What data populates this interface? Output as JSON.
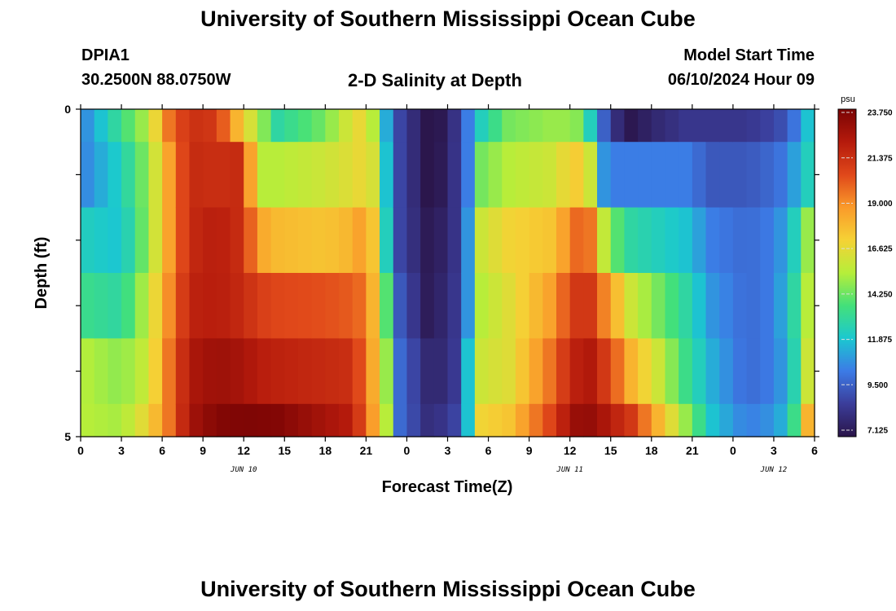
{
  "header": {
    "title": "University of Southern Mississippi Ocean Cube",
    "station": "DPIA1",
    "coords": "30.2500N  88.0750W",
    "subtitle": "2-D Salinity at Depth",
    "model_label": "Model Start Time",
    "model_time": "06/10/2024 Hour 09",
    "footer_title": "University of Southern Mississippi Ocean Cube"
  },
  "colors": {
    "scale": [
      "#2a1448",
      "#3b3d9a",
      "#3c7be6",
      "#1bc8d0",
      "#43e07a",
      "#b6ee3a",
      "#f5d235",
      "#fa9a2a",
      "#e0481a",
      "#b51a0c",
      "#7a0404"
    ]
  },
  "chart_data": {
    "type": "heatmap",
    "title": "2-D Salinity at Depth",
    "xlabel": "Forecast Time(Z)",
    "ylabel": "Depth (ft)",
    "x_tick_labels": [
      "0",
      "3",
      "6",
      "9",
      "12",
      "15",
      "18",
      "21",
      "0",
      "3",
      "6",
      "9",
      "12",
      "15",
      "18",
      "21",
      "0",
      "3",
      "6"
    ],
    "x_range_hours": [
      0,
      54
    ],
    "date_labels": [
      {
        "text": "JUN 10",
        "hour": 12
      },
      {
        "text": "JUN 11",
        "hour": 36
      },
      {
        "text": "JUN 12",
        "hour": 51
      }
    ],
    "y_tick_labels": [
      "0",
      "5"
    ],
    "y_range": [
      0,
      5
    ],
    "colorbar": {
      "unit": "psu",
      "min": 7.125,
      "max": 23.75,
      "labels": [
        "23.750",
        "21.375",
        "19.000",
        "16.625",
        "14.250",
        "11.875",
        "9.500",
        "7.125"
      ]
    },
    "depths_ft": [
      0.25,
      1.25,
      2.25,
      3.25,
      4.25,
      4.75
    ],
    "keypoints": [
      [
        0,
        10.5,
        10.5,
        12.5,
        13.5,
        15.5,
        15.5
      ],
      [
        3,
        13.5,
        12.5,
        12.0,
        13.0,
        14.8,
        15.2
      ],
      [
        5,
        15.5,
        15.0,
        15.0,
        15.8,
        16.0,
        17.0
      ],
      [
        6.5,
        19.5,
        18.5,
        18.5,
        19.0,
        19.5,
        19.5
      ],
      [
        8,
        21.3,
        21.5,
        21.5,
        21.8,
        22.3,
        22.5
      ],
      [
        10,
        21.0,
        21.3,
        22.0,
        22.0,
        22.8,
        23.5
      ],
      [
        12,
        17.0,
        21.5,
        21.3,
        21.5,
        22.5,
        23.6
      ],
      [
        13,
        15.5,
        15.5,
        18.5,
        20.8,
        22.0,
        23.6
      ],
      [
        14.5,
        13.0,
        15.5,
        17.8,
        20.5,
        21.8,
        23.5
      ],
      [
        18,
        14.5,
        16.0,
        17.5,
        20.3,
        21.5,
        22.5
      ],
      [
        20,
        16.5,
        16.5,
        18.0,
        20.0,
        21.3,
        22.0
      ],
      [
        21,
        17.0,
        17.0,
        19.0,
        19.5,
        19.5,
        19.8
      ],
      [
        22,
        14.0,
        15.5,
        16.0,
        16.5,
        17.0,
        17.5
      ],
      [
        22.5,
        11.5,
        12.0,
        12.5,
        14.0,
        15.0,
        15.5
      ],
      [
        23.5,
        9.0,
        9.0,
        9.0,
        9.5,
        10.0,
        10.0
      ],
      [
        25.5,
        7.2,
        7.2,
        7.4,
        7.5,
        8.0,
        8.2
      ],
      [
        27,
        7.4,
        7.5,
        7.8,
        8.0,
        8.0,
        8.5
      ],
      [
        28,
        9.3,
        9.3,
        9.0,
        9.0,
        9.2,
        9.4
      ],
      [
        28.5,
        10.5,
        10.5,
        11.0,
        11.0,
        12.0,
        12.0
      ],
      [
        29.5,
        12.5,
        14.5,
        16.0,
        15.5,
        16.0,
        17.0
      ],
      [
        31.5,
        14.5,
        15.5,
        17.0,
        16.5,
        16.5,
        17.5
      ],
      [
        34.5,
        15.0,
        16.0,
        17.5,
        18.5,
        19.5,
        20.5
      ],
      [
        36,
        15.0,
        17.0,
        19.0,
        20.5,
        21.5,
        22.5
      ],
      [
        37,
        14.5,
        17.5,
        20.5,
        21.5,
        22.3,
        23.3
      ],
      [
        37.5,
        12.5,
        16.0,
        19.5,
        21.0,
        22.2,
        23.0
      ],
      [
        38,
        11.0,
        11.5,
        17.0,
        20.0,
        21.5,
        22.8
      ],
      [
        39,
        8.5,
        10.5,
        14.5,
        18.5,
        20.5,
        22.0
      ],
      [
        40.5,
        7.3,
        10.5,
        13.0,
        16.0,
        18.0,
        21.0
      ],
      [
        42.5,
        8.0,
        10.5,
        12.5,
        14.5,
        16.0,
        18.0
      ],
      [
        44.5,
        8.5,
        10.5,
        12.0,
        13.0,
        13.5,
        15.0
      ],
      [
        46.5,
        8.5,
        9.5,
        10.5,
        11.0,
        11.5,
        12.0
      ],
      [
        49,
        8.5,
        9.5,
        10.0,
        10.0,
        10.0,
        10.5
      ],
      [
        51,
        9.0,
        10.0,
        10.5,
        10.5,
        10.5,
        11.0
      ],
      [
        52,
        9.5,
        10.5,
        11.5,
        12.0,
        11.5,
        12.0
      ],
      [
        53,
        11.0,
        12.0,
        13.5,
        14.0,
        14.0,
        15.0
      ],
      [
        53.5,
        12.0,
        12.5,
        15.0,
        15.5,
        16.0,
        18.0
      ],
      [
        54,
        13.0,
        13.5,
        16.5,
        17.0,
        18.0,
        20.0
      ]
    ]
  }
}
